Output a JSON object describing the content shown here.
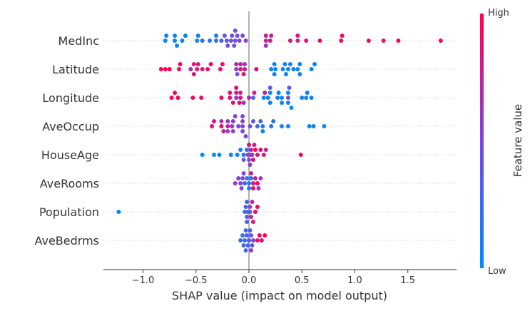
{
  "chart_data": {
    "type": "scatter",
    "subtype": "shap-beeswarm",
    "xlabel": "SHAP value (impact on model output)",
    "xlim": [
      -1.37,
      1.96
    ],
    "xticks": [
      -1.0,
      -0.5,
      0.0,
      0.5,
      1.0,
      1.5
    ],
    "xtick_labels": [
      "−1.0",
      "−0.5",
      "0.0",
      "0.5",
      "1.0",
      "1.5"
    ],
    "grid": false,
    "colorbar": {
      "label": "Feature value",
      "high_label": "High",
      "low_label": "Low",
      "low_color": "#008bfb",
      "mid_color": "#7a48dc",
      "high_color": "#ff0052"
    },
    "features": [
      {
        "name": "MedInc",
        "points": [
          [
            -0.79,
            0.02
          ],
          [
            -0.7,
            0.05
          ],
          [
            -0.48,
            0.08
          ],
          [
            -0.31,
            0.2
          ],
          [
            -0.21,
            0.4
          ],
          [
            -0.17,
            0.45
          ],
          [
            -0.14,
            0.45
          ],
          [
            -0.11,
            0.45
          ],
          [
            0.16,
            0.75
          ],
          [
            0.21,
            0.75
          ],
          [
            0.46,
            0.8
          ],
          [
            0.87,
            0.9
          ],
          [
            -0.78,
            0.03
          ],
          [
            -0.7,
            0.05
          ],
          [
            -0.68,
            0.05
          ],
          [
            -0.63,
            0.06
          ],
          [
            -0.6,
            0.08
          ],
          [
            -0.49,
            0.1
          ],
          [
            -0.44,
            0.2
          ],
          [
            -0.37,
            0.15
          ],
          [
            -0.31,
            0.15
          ],
          [
            -0.26,
            0.3
          ],
          [
            -0.23,
            0.35
          ],
          [
            -0.2,
            0.4
          ],
          [
            -0.16,
            0.42
          ],
          [
            -0.13,
            0.45
          ],
          [
            -0.09,
            0.5
          ],
          [
            -0.06,
            0.5
          ],
          [
            -0.03,
            0.55
          ],
          [
            0.16,
            0.8
          ],
          [
            0.2,
            0.8
          ],
          [
            0.39,
            0.85
          ],
          [
            0.46,
            0.85
          ],
          [
            0.54,
            0.9
          ],
          [
            0.67,
            0.92
          ],
          [
            0.88,
            0.95
          ],
          [
            1.13,
            0.97
          ],
          [
            1.27,
            0.98
          ],
          [
            1.41,
            0.98
          ],
          [
            1.81,
            1.0
          ],
          [
            -0.13,
            0.45
          ],
          [
            0.16,
            0.65
          ]
        ]
      },
      {
        "name": "Latitude",
        "points": [
          [
            -0.66,
            0.95
          ],
          [
            -0.52,
            0.85
          ],
          [
            -0.48,
            0.85
          ],
          [
            -0.12,
            0.55
          ],
          [
            -0.08,
            0.8
          ],
          [
            -0.04,
            0.85
          ],
          [
            0.24,
            0.05
          ],
          [
            0.25,
            0.05
          ],
          [
            0.34,
            0.05
          ],
          [
            0.37,
            0.05
          ],
          [
            0.48,
            0.05
          ],
          [
            -0.83,
            1.0
          ],
          [
            -0.79,
            1.0
          ],
          [
            -0.75,
            1.0
          ],
          [
            -0.65,
            0.95
          ],
          [
            -0.55,
            0.7
          ],
          [
            -0.52,
            0.85
          ],
          [
            -0.49,
            0.85
          ],
          [
            -0.44,
            0.85
          ],
          [
            -0.39,
            0.9
          ],
          [
            -0.36,
            0.9
          ],
          [
            -0.27,
            0.92
          ],
          [
            -0.25,
            0.92
          ],
          [
            -0.12,
            0.7
          ],
          [
            -0.08,
            0.75
          ],
          [
            -0.05,
            0.85
          ],
          [
            0.07,
            0.95
          ],
          [
            0.21,
            0.05
          ],
          [
            0.24,
            0.05
          ],
          [
            0.32,
            0.05
          ],
          [
            0.35,
            0.05
          ],
          [
            0.39,
            0.05
          ],
          [
            0.42,
            0.05
          ],
          [
            0.46,
            0.05
          ],
          [
            0.48,
            0.05
          ],
          [
            0.59,
            0.05
          ],
          [
            0.62,
            0.05
          ],
          [
            -0.11,
            0.5
          ],
          [
            -0.04,
            0.6
          ]
        ]
      },
      {
        "name": "Longitude",
        "points": [
          [
            -0.7,
            0.97
          ],
          [
            -0.18,
            0.9
          ],
          [
            -0.12,
            0.6
          ],
          [
            -0.08,
            0.85
          ],
          [
            0.04,
            0.25
          ],
          [
            0.14,
            0.05
          ],
          [
            0.2,
            0.05
          ],
          [
            0.27,
            0.05
          ],
          [
            0.31,
            0.05
          ],
          [
            0.37,
            0.55
          ],
          [
            0.38,
            0.4
          ],
          [
            0.55,
            0.05
          ],
          [
            -0.73,
            0.97
          ],
          [
            -0.67,
            0.97
          ],
          [
            -0.53,
            0.95
          ],
          [
            -0.45,
            0.95
          ],
          [
            -0.26,
            0.92
          ],
          [
            -0.18,
            0.9
          ],
          [
            -0.15,
            0.85
          ],
          [
            -0.12,
            0.8
          ],
          [
            -0.08,
            0.75
          ],
          [
            -0.05,
            0.7
          ],
          [
            0.0,
            0.75
          ],
          [
            0.05,
            0.8
          ],
          [
            0.15,
            0.8
          ],
          [
            0.18,
            0.05
          ],
          [
            0.2,
            0.05
          ],
          [
            0.28,
            0.05
          ],
          [
            0.31,
            0.05
          ],
          [
            0.37,
            0.05
          ],
          [
            0.4,
            0.05
          ],
          [
            0.5,
            0.05
          ],
          [
            0.54,
            0.05
          ],
          [
            0.59,
            0.05
          ],
          [
            -0.12,
            0.9
          ],
          [
            -0.09,
            0.9
          ],
          [
            0.2,
            0.4
          ],
          [
            0.37,
            0.08
          ]
        ]
      },
      {
        "name": "AveOccup",
        "points": [
          [
            -0.35,
            0.85
          ],
          [
            -0.33,
            0.85
          ],
          [
            -0.26,
            0.9
          ],
          [
            -0.24,
            0.8
          ],
          [
            -0.2,
            0.75
          ],
          [
            -0.16,
            0.6
          ],
          [
            -0.13,
            0.55
          ],
          [
            -0.1,
            0.5
          ],
          [
            -0.06,
            0.55
          ],
          [
            -0.03,
            0.5
          ],
          [
            0.01,
            0.45
          ],
          [
            0.04,
            0.4
          ],
          [
            0.08,
            0.3
          ],
          [
            0.11,
            0.25
          ],
          [
            0.13,
            0.15
          ],
          [
            -0.26,
            0.65
          ],
          [
            -0.2,
            0.6
          ],
          [
            -0.15,
            0.55
          ],
          [
            -0.06,
            0.6
          ],
          [
            0.13,
            0.1
          ],
          [
            -0.2,
            0.55
          ],
          [
            -0.15,
            0.55
          ],
          [
            -0.06,
            0.5
          ],
          [
            -0.06,
            0.45
          ],
          [
            0.21,
            0.2
          ],
          [
            0.23,
            0.2
          ],
          [
            0.31,
            0.05
          ],
          [
            0.37,
            0.05
          ],
          [
            0.57,
            0.05
          ],
          [
            0.61,
            0.05
          ],
          [
            0.71,
            0.05
          ]
        ]
      },
      {
        "name": "HouseAge",
        "points": [
          [
            -0.44,
            0.02
          ],
          [
            -0.33,
            0.02
          ],
          [
            -0.28,
            0.02
          ],
          [
            -0.17,
            0.05
          ],
          [
            -0.11,
            0.1
          ],
          [
            -0.08,
            0.1
          ],
          [
            -0.05,
            0.15
          ],
          [
            -0.02,
            0.25
          ],
          [
            0.0,
            0.5
          ],
          [
            0.01,
            0.6
          ],
          [
            0.03,
            0.7
          ],
          [
            0.05,
            0.8
          ],
          [
            0.08,
            0.85
          ],
          [
            0.11,
            0.9
          ],
          [
            0.14,
            0.85
          ],
          [
            0.16,
            0.75
          ],
          [
            -0.05,
            0.4
          ],
          [
            -0.01,
            0.6
          ],
          [
            0.02,
            0.8
          ],
          [
            0.04,
            0.85
          ],
          [
            0.0,
            0.9
          ],
          [
            0.06,
            0.95
          ],
          [
            0.01,
            0.45
          ],
          [
            0.49,
            0.97
          ]
        ]
      },
      {
        "name": "AveRooms",
        "points": [
          [
            -0.07,
            0.5
          ],
          [
            -0.05,
            0.5
          ],
          [
            0.0,
            0.1
          ],
          [
            0.02,
            0.2
          ],
          [
            0.08,
            0.95
          ],
          [
            -0.13,
            0.6
          ],
          [
            -0.1,
            0.55
          ],
          [
            -0.08,
            0.5
          ],
          [
            -0.06,
            0.45
          ],
          [
            -0.04,
            0.3
          ],
          [
            -0.02,
            0.2
          ],
          [
            0.0,
            0.15
          ],
          [
            0.02,
            0.8
          ],
          [
            0.04,
            0.85
          ],
          [
            0.06,
            0.8
          ],
          [
            0.09,
            0.7
          ],
          [
            0.11,
            0.6
          ],
          [
            0.04,
            0.95
          ]
        ]
      },
      {
        "name": "Population",
        "points": [
          [
            -1.23,
            0.02
          ],
          [
            -0.02,
            0.4
          ],
          [
            0.0,
            0.45
          ],
          [
            -0.01,
            0.5
          ],
          [
            0.01,
            0.6
          ],
          [
            -0.03,
            0.3
          ],
          [
            0.02,
            0.7
          ],
          [
            0.04,
            0.85
          ],
          [
            0.06,
            0.9
          ],
          [
            0.08,
            0.95
          ],
          [
            -0.04,
            0.2
          ],
          [
            -0.02,
            0.25
          ],
          [
            0.0,
            0.15
          ],
          [
            -0.01,
            0.35
          ],
          [
            0.03,
            0.75
          ],
          [
            0.01,
            0.3
          ],
          [
            -0.02,
            0.3
          ],
          [
            0.0,
            0.2
          ]
        ]
      },
      {
        "name": "AveBedrms",
        "points": [
          [
            -0.05,
            0.3
          ],
          [
            -0.03,
            0.25
          ],
          [
            -0.01,
            0.3
          ],
          [
            0.01,
            0.35
          ],
          [
            0.03,
            0.4
          ],
          [
            -0.08,
            0.2
          ],
          [
            -0.06,
            0.15
          ],
          [
            -0.04,
            0.2
          ],
          [
            -0.02,
            0.3
          ],
          [
            0.0,
            0.35
          ],
          [
            0.02,
            0.45
          ],
          [
            0.04,
            0.55
          ],
          [
            0.08,
            0.9
          ],
          [
            0.1,
            0.95
          ],
          [
            0.12,
            0.95
          ],
          [
            0.15,
            1.0
          ],
          [
            -0.03,
            0.25
          ],
          [
            0.0,
            0.4
          ],
          [
            0.02,
            0.6
          ]
        ]
      }
    ]
  }
}
